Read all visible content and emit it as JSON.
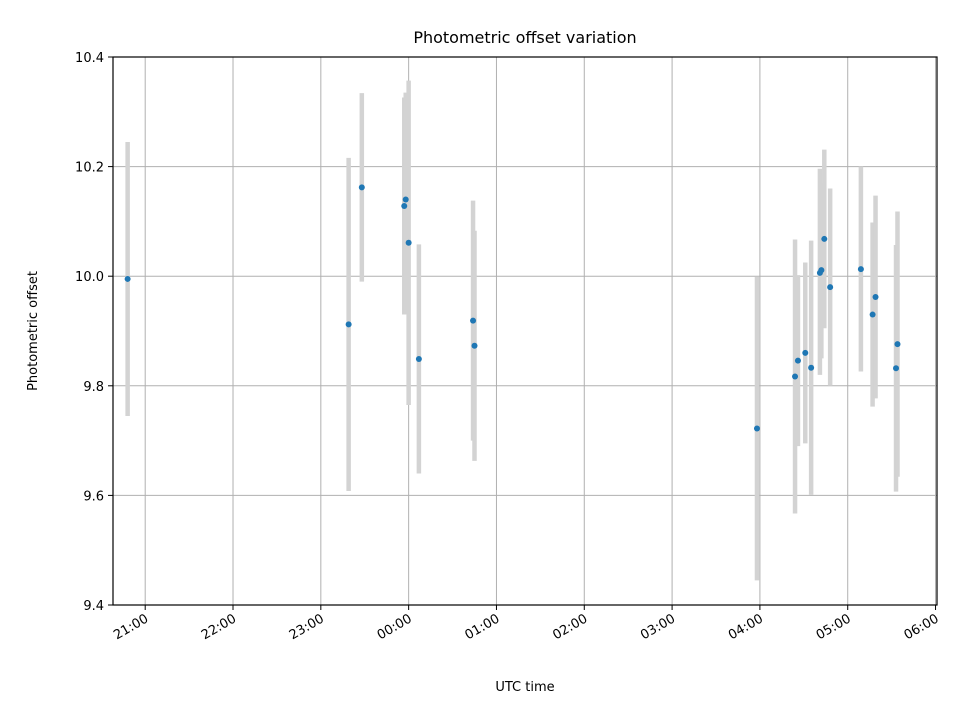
{
  "chart_data": {
    "type": "scatter",
    "title": "Photometric offset variation",
    "xlabel": "UTC time",
    "ylabel": "Photometric offset",
    "ylim": [
      9.4,
      10.4
    ],
    "xlim": [
      "20:38",
      "06:01"
    ],
    "x_ticks": [
      "21:00",
      "22:00",
      "23:00",
      "00:00",
      "01:00",
      "02:00",
      "03:00",
      "04:00",
      "05:00",
      "06:00"
    ],
    "y_ticks": [
      "9.4",
      "9.6",
      "9.8",
      "10.0",
      "10.2",
      "10.4"
    ],
    "grid": true,
    "point_color": "#1f77b4",
    "errorbar_color": "#d3d3d3",
    "points": [
      {
        "x": "20:48",
        "y": 9.995,
        "err_low": 9.745,
        "err_high": 10.245
      },
      {
        "x": "23:19",
        "y": 9.912,
        "err_low": 9.608,
        "err_high": 10.216
      },
      {
        "x": "23:28",
        "y": 10.162,
        "err_low": 9.99,
        "err_high": 10.334
      },
      {
        "x": "23:57",
        "y": 10.128,
        "err_low": 9.93,
        "err_high": 10.326
      },
      {
        "x": "23:58",
        "y": 10.14,
        "err_low": 9.93,
        "err_high": 10.335
      },
      {
        "x": "00:00",
        "y": 10.061,
        "err_low": 9.765,
        "err_high": 10.357
      },
      {
        "x": "00:07",
        "y": 9.849,
        "err_low": 9.64,
        "err_high": 10.058
      },
      {
        "x": "00:44",
        "y": 9.919,
        "err_low": 9.7,
        "err_high": 10.138
      },
      {
        "x": "00:45",
        "y": 9.873,
        "err_low": 9.663,
        "err_high": 10.083
      },
      {
        "x": "03:58",
        "y": 9.722,
        "err_low": 9.445,
        "err_high": 9.999
      },
      {
        "x": "04:24",
        "y": 9.817,
        "err_low": 9.567,
        "err_high": 10.067
      },
      {
        "x": "04:26",
        "y": 9.846,
        "err_low": 9.69,
        "err_high": 10.002
      },
      {
        "x": "04:31",
        "y": 9.86,
        "err_low": 9.695,
        "err_high": 10.025
      },
      {
        "x": "04:35",
        "y": 9.833,
        "err_low": 9.601,
        "err_high": 10.065
      },
      {
        "x": "04:41",
        "y": 10.006,
        "err_low": 9.82,
        "err_high": 10.196
      },
      {
        "x": "04:42",
        "y": 10.011,
        "err_low": 9.85,
        "err_high": 10.17
      },
      {
        "x": "04:44",
        "y": 10.068,
        "err_low": 9.905,
        "err_high": 10.231
      },
      {
        "x": "04:48",
        "y": 9.98,
        "err_low": 9.8,
        "err_high": 10.16
      },
      {
        "x": "05:09",
        "y": 10.013,
        "err_low": 9.826,
        "err_high": 10.2
      },
      {
        "x": "05:17",
        "y": 9.93,
        "err_low": 9.762,
        "err_high": 10.098
      },
      {
        "x": "05:19",
        "y": 9.962,
        "err_low": 9.777,
        "err_high": 10.147
      },
      {
        "x": "05:33",
        "y": 9.832,
        "err_low": 9.607,
        "err_high": 10.057
      },
      {
        "x": "05:34",
        "y": 9.876,
        "err_low": 9.634,
        "err_high": 10.118
      }
    ]
  }
}
